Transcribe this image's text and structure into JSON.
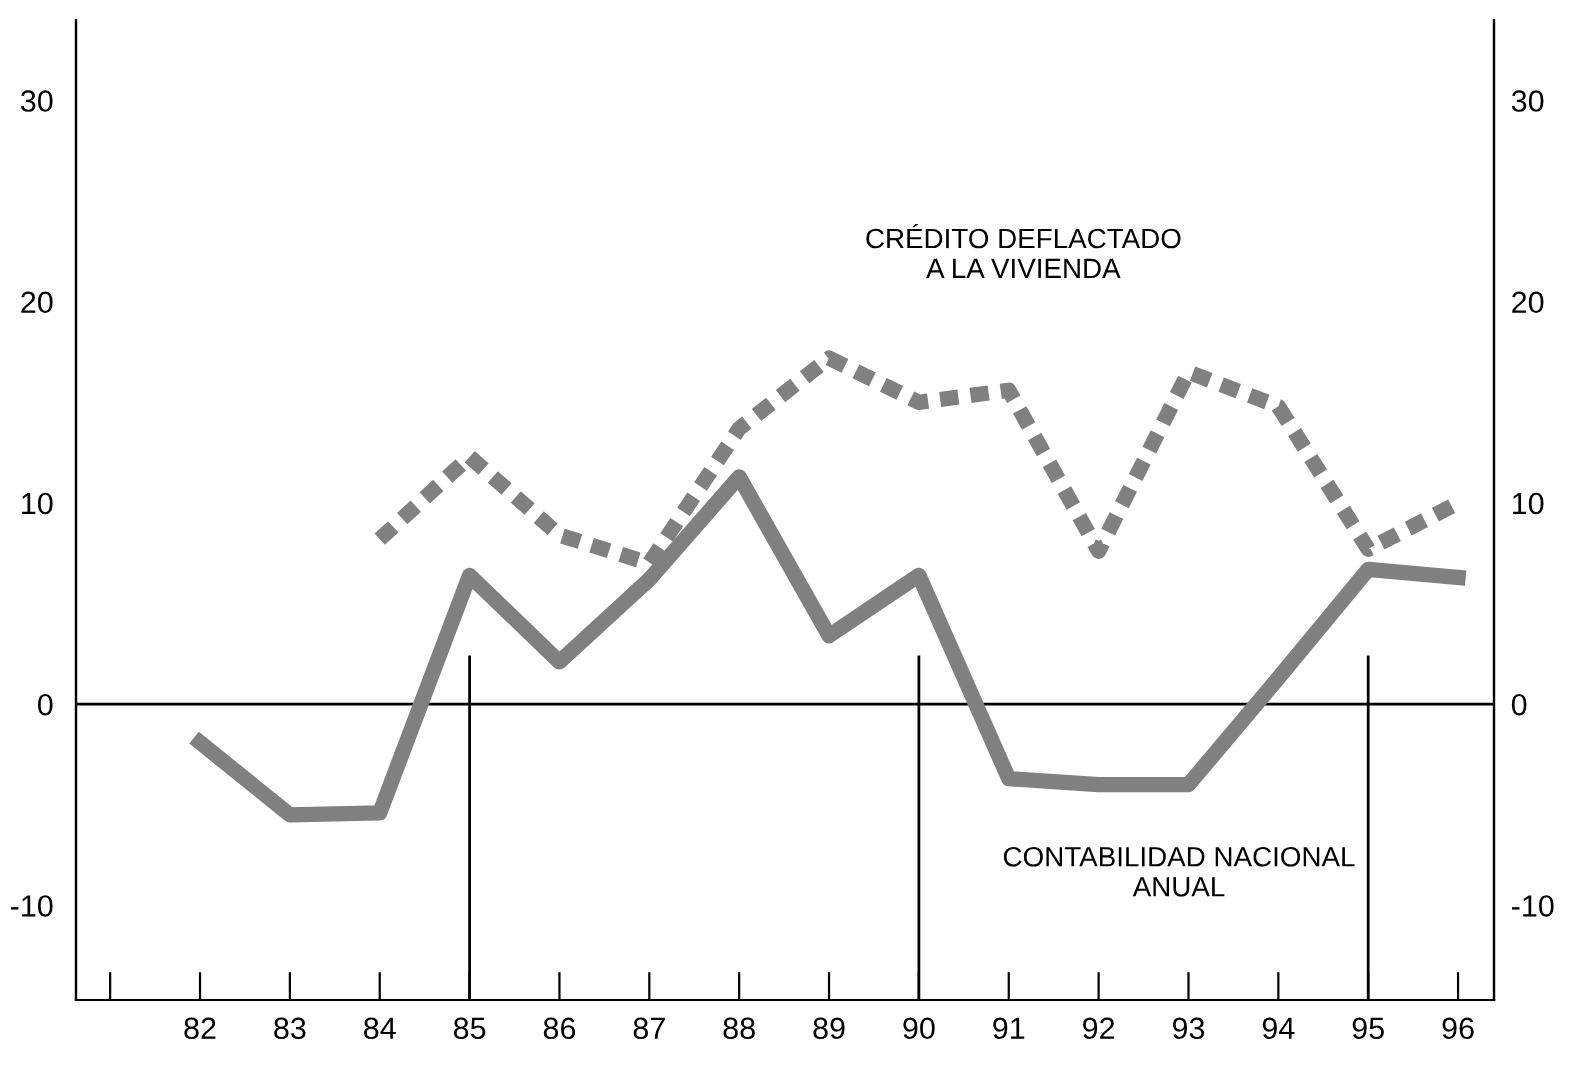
{
  "chart_data": {
    "type": "line",
    "x": [
      82,
      83,
      84,
      85,
      86,
      87,
      88,
      89,
      90,
      91,
      92,
      93,
      94,
      95,
      96
    ],
    "series": [
      {
        "color": "#808080",
        "line_style": "solid",
        "values": [
          -1.9,
          -5.5,
          -5.4,
          6.4,
          2.1,
          6.2,
          11.3,
          3.4,
          6.4,
          -3.7,
          -4.0,
          -4.0,
          1.3,
          6.7,
          6.3
        ]
      },
      {
        "color": "#808080",
        "line_style": "dotted",
        "values": [
          null,
          null,
          8.2,
          12.3,
          8.4,
          7.0,
          13.7,
          17.2,
          15.0,
          15.6,
          7.6,
          16.5,
          14.8,
          7.7,
          10.0
        ]
      }
    ],
    "xlim": [
      80.62,
      96.4
    ],
    "xticks": [
      {
        "value": 81,
        "label": null
      },
      82,
      83,
      84,
      85,
      86,
      87,
      88,
      89,
      90,
      91,
      92,
      93,
      94,
      95,
      96
    ],
    "ylim": [
      -14.7,
      34
    ],
    "yticks": [
      -10,
      0,
      10,
      20,
      30
    ],
    "y2lim": [
      -14.7,
      34
    ],
    "y2ticks": [
      -10,
      0,
      10,
      20,
      30
    ],
    "grid": false,
    "ref_lines": [
      {
        "axis": "y",
        "value": 0,
        "color": "#000000"
      },
      {
        "axis": "x",
        "value": 85,
        "color": "#000000"
      },
      {
        "axis": "x",
        "value": 90,
        "color": "#000000"
      },
      {
        "axis": "x",
        "value": 95,
        "color": "#000000"
      }
    ],
    "annotations": [
      "CRÉDITO DEFLACTADO\nA LA VIVIENDA",
      "CONTABILIDAD NACIONAL\nANUAL"
    ]
  }
}
